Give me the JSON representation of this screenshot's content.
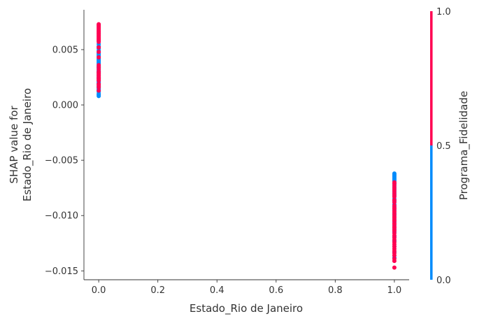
{
  "chart_data": {
    "type": "scatter",
    "title": "",
    "xlabel": "Estado_Rio de Janeiro",
    "ylabel": [
      "SHAP value for",
      "Estado_Rio de Janeiro"
    ],
    "xlim": [
      -0.05,
      1.05
    ],
    "ylim": [
      -0.0158,
      0.0086
    ],
    "x_ticks": [
      0.0,
      0.2,
      0.4,
      0.6,
      0.8,
      1.0
    ],
    "x_tick_labels": [
      "0.0",
      "0.2",
      "0.4",
      "0.6",
      "0.8",
      "1.0"
    ],
    "y_ticks": [
      0.005,
      0.0,
      -0.005,
      -0.01,
      -0.015
    ],
    "y_tick_labels": [
      "0.005",
      "0.000",
      "−0.005",
      "−0.010",
      "−0.015"
    ],
    "grid": false,
    "colorbar": {
      "label": "Programa_Fidelidade",
      "ticks": [
        1.0,
        0.5,
        0.0
      ],
      "tick_labels": [
        "1.0",
        "0.5",
        "0.0"
      ],
      "low_color": "#008bfb",
      "high_color": "#ff0052"
    },
    "series": [
      {
        "color_value": 0,
        "color": "#008bfb",
        "x": [
          0,
          0,
          0,
          0,
          0,
          0,
          0,
          0,
          0,
          0,
          0,
          0,
          0,
          0,
          0,
          0,
          0,
          0,
          0,
          0,
          0,
          0,
          0,
          0,
          0,
          0,
          0,
          0,
          0,
          0,
          0,
          0,
          0,
          0,
          0,
          0,
          1,
          1,
          1,
          1,
          1,
          1,
          1,
          1,
          1,
          1,
          1,
          1,
          1,
          1,
          1,
          1,
          1,
          1,
          1,
          1,
          1,
          1,
          1,
          1,
          1,
          1,
          1,
          1,
          1,
          1,
          1,
          1
        ],
        "y": [
          0.0055,
          0.0053,
          0.0051,
          0.0049,
          0.0047,
          0.0046,
          0.0045,
          0.0044,
          0.0042,
          0.0041,
          0.004,
          0.0039,
          0.0038,
          0.0037,
          0.0035,
          0.0034,
          0.0033,
          0.0031,
          0.003,
          0.0029,
          0.0027,
          0.0025,
          0.0024,
          0.0022,
          0.0021,
          0.002,
          0.0019,
          0.0017,
          0.0016,
          0.0015,
          0.0014,
          0.0013,
          0.0012,
          0.001,
          0.0009,
          0.0008,
          -0.0062,
          -0.0063,
          -0.0064,
          -0.0065,
          -0.0066,
          -0.0067,
          -0.0068,
          -0.0069,
          -0.0071,
          -0.0072,
          -0.0074,
          -0.0076,
          -0.0078,
          -0.008,
          -0.0082,
          -0.0085,
          -0.0087,
          -0.009,
          -0.0092,
          -0.0095,
          -0.0098,
          -0.01,
          -0.0103,
          -0.0106,
          -0.0109,
          -0.0112,
          -0.0115,
          -0.0119,
          -0.0123,
          -0.0128,
          -0.0133,
          -0.0138
        ]
      },
      {
        "color_value": 1,
        "color": "#ff0052",
        "x": [
          0,
          0,
          0,
          0,
          0,
          0,
          0,
          0,
          0,
          0,
          0,
          0,
          0,
          0,
          0,
          0,
          0,
          0,
          0,
          0,
          0,
          0,
          0,
          0,
          0,
          0,
          0,
          0,
          0,
          0,
          0,
          0,
          0,
          0,
          0,
          0,
          1,
          1,
          1,
          1,
          1,
          1,
          1,
          1,
          1,
          1,
          1,
          1,
          1,
          1,
          1,
          1,
          1,
          1,
          1,
          1,
          1,
          1,
          1,
          1,
          1,
          1,
          1,
          1,
          1,
          1,
          1,
          1,
          1,
          1,
          1,
          1,
          1,
          1,
          1,
          1
        ],
        "y": [
          0.0073,
          0.0072,
          0.0071,
          0.007,
          0.0069,
          0.0068,
          0.0067,
          0.0066,
          0.0065,
          0.0064,
          0.0063,
          0.0062,
          0.0061,
          0.006,
          0.0059,
          0.0058,
          0.0057,
          0.0052,
          0.0048,
          0.0043,
          0.0036,
          0.0034,
          0.0032,
          0.003,
          0.0029,
          0.0028,
          0.0027,
          0.0026,
          0.0025,
          0.0024,
          0.0023,
          0.0022,
          0.0019,
          0.0018,
          0.0016,
          0.0013,
          -0.007,
          -0.0071,
          -0.0073,
          -0.0075,
          -0.0077,
          -0.0079,
          -0.0081,
          -0.0083,
          -0.0086,
          -0.0088,
          -0.0091,
          -0.0093,
          -0.0094,
          -0.0096,
          -0.0097,
          -0.0099,
          -0.0101,
          -0.0102,
          -0.0104,
          -0.0105,
          -0.0107,
          -0.0108,
          -0.011,
          -0.0111,
          -0.0113,
          -0.0114,
          -0.0116,
          -0.0118,
          -0.012,
          -0.0122,
          -0.0124,
          -0.0126,
          -0.0128,
          -0.013,
          -0.0132,
          -0.0134,
          -0.0136,
          -0.0139,
          -0.0141,
          -0.0147
        ]
      }
    ]
  }
}
